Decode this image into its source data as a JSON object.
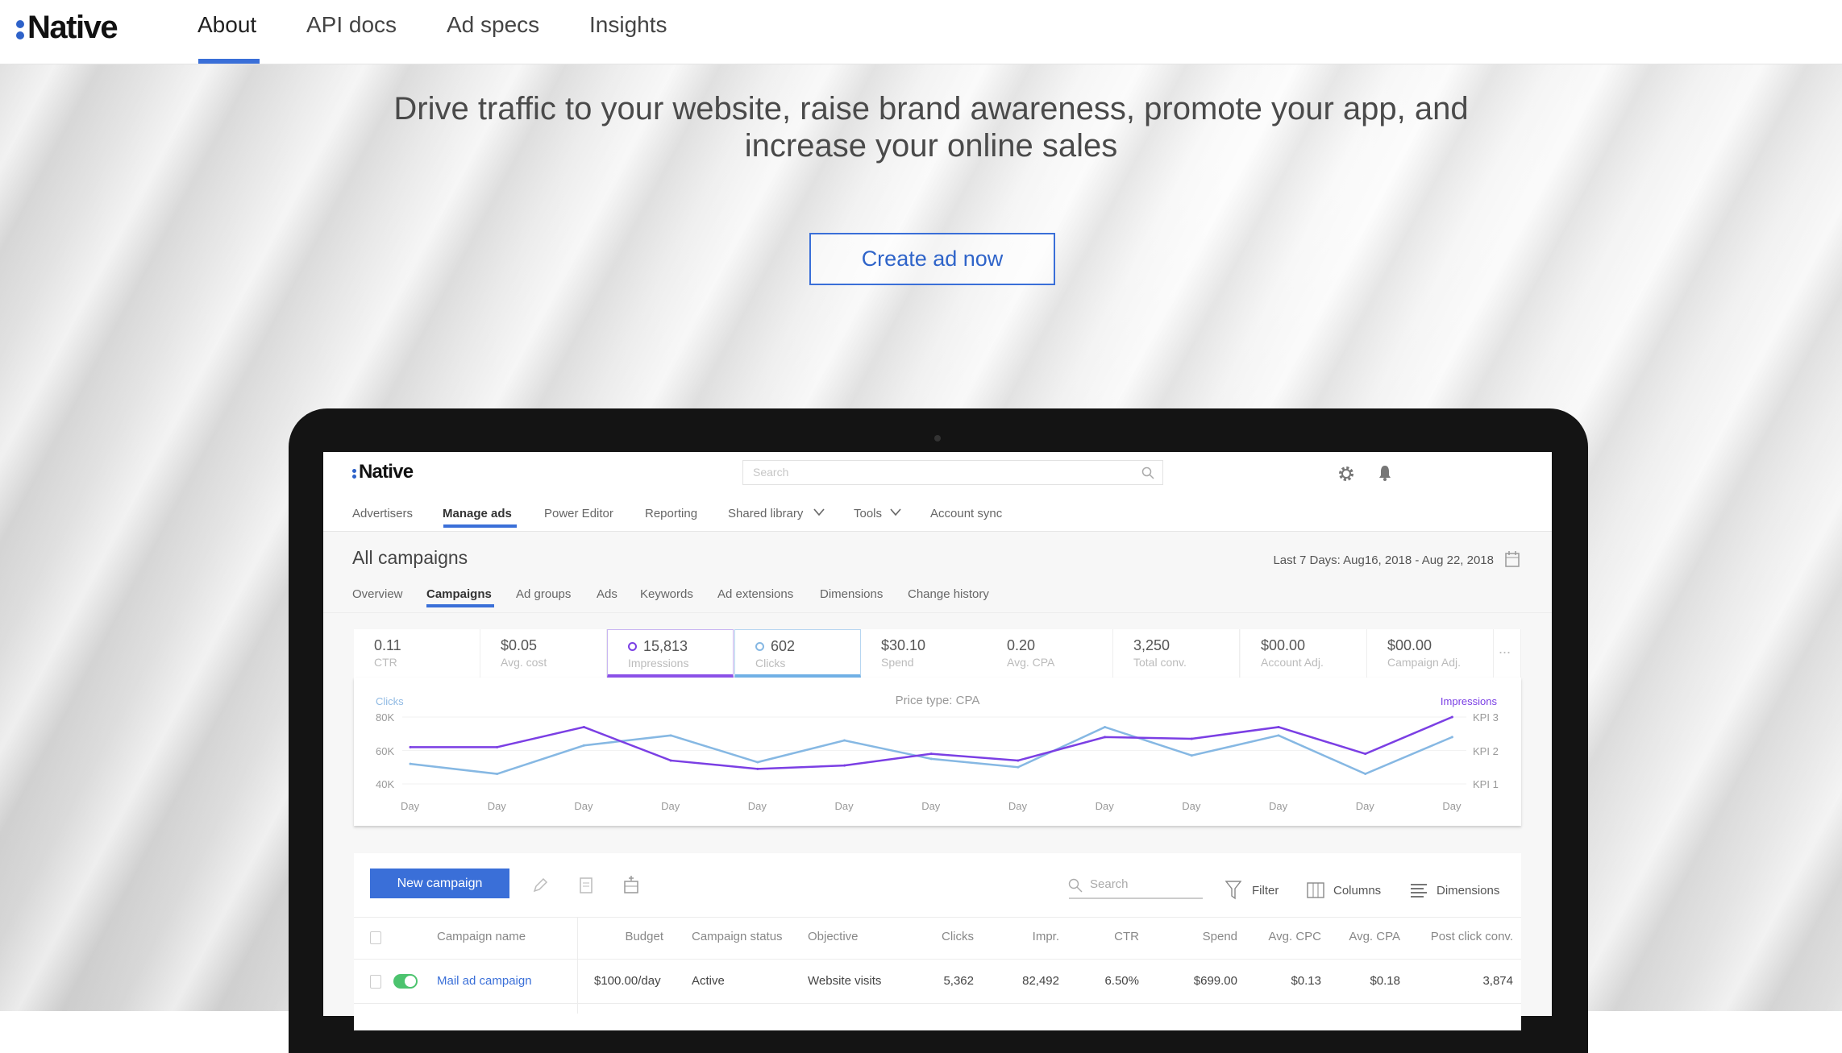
{
  "site": {
    "logo": "Native",
    "nav": [
      {
        "label": "About",
        "active": true
      },
      {
        "label": "API docs"
      },
      {
        "label": "Ad specs"
      },
      {
        "label": "Insights"
      }
    ]
  },
  "hero": {
    "headline_line1": "Drive traffic to your website, raise brand awareness, promote your app, and",
    "headline_line2": "increase your online sales",
    "cta": "Create ad now"
  },
  "app": {
    "logo": "Native",
    "search_placeholder": "Search",
    "icons": [
      "gear-icon",
      "bell-icon"
    ],
    "nav": [
      "Advertisers",
      "Manage ads",
      "Power Editor",
      "Reporting",
      "Shared library",
      "Tools",
      "Account sync"
    ],
    "active_nav": "Manage ads",
    "page_title": "All campaigns",
    "date_range": "Last 7 Days: Aug16, 2018 - Aug 22, 2018",
    "tabs": [
      "Overview",
      "Campaigns",
      "Ad groups",
      "Ads",
      "Keywords",
      "Ad extensions",
      "Dimensions",
      "Change history"
    ],
    "active_tab": "Campaigns",
    "metrics": [
      {
        "value": "0.11",
        "label": "CTR"
      },
      {
        "value": "$0.05",
        "label": "Avg. cost"
      },
      {
        "value": "15,813",
        "label": "Impressions",
        "selected": true
      },
      {
        "value": "602",
        "label": "Clicks",
        "selected": true
      },
      {
        "value": "$30.10",
        "label": "Spend"
      },
      {
        "value": "0.20",
        "label": "Avg. CPA"
      },
      {
        "value": "3,250",
        "label": "Total conv."
      },
      {
        "value": "$00.00",
        "label": "Account Adj."
      },
      {
        "value": "$00.00",
        "label": "Campaign Adj."
      }
    ],
    "more": "...",
    "toolbar": {
      "new_campaign": "New campaign",
      "search_placeholder": "Search",
      "filter": "Filter",
      "columns": "Columns",
      "dimensions": "Dimensions"
    },
    "table": {
      "headers": [
        "Campaign name",
        "Budget",
        "Campaign status",
        "Objective",
        "Clicks",
        "Impr.",
        "CTR",
        "Spend",
        "Avg. CPC",
        "Avg. CPA",
        "Post click conv."
      ],
      "rows": [
        [
          "Mail ad campaign",
          "$100.00/day",
          "Active",
          "Website visits",
          "5,362",
          "82,492",
          "6.50%",
          "$699.00",
          "$0.13",
          "$0.18",
          "3,874"
        ]
      ]
    }
  },
  "chart_data": {
    "type": "line",
    "title": "Price type: CPA",
    "left_label": "Clicks",
    "right_label": "Impressions",
    "left_ticks": [
      "80K",
      "60K",
      "40K"
    ],
    "right_ticks": [
      "KPI 3",
      "KPI 2",
      "KPI 1"
    ],
    "ylim": [
      40,
      80
    ],
    "categories": [
      "Day",
      "Day",
      "Day",
      "Day",
      "Day",
      "Day",
      "Day",
      "Day",
      "Day",
      "Day",
      "Day",
      "Day",
      "Day"
    ],
    "series": [
      {
        "name": "Impressions",
        "color": "#7b3fe4",
        "values": [
          62,
          62,
          74,
          54,
          49,
          51,
          58,
          54,
          68,
          67,
          74,
          58,
          80
        ]
      },
      {
        "name": "Clicks",
        "color": "#86b8e3",
        "values": [
          52,
          46,
          63,
          69,
          53,
          66,
          55,
          50,
          74,
          57,
          69,
          46,
          68
        ]
      }
    ]
  },
  "colors": {
    "accent": "#3a6fd8",
    "impressions": "#7b3fe4",
    "clicks": "#86b8e3",
    "toggle": "#4cc36e"
  }
}
